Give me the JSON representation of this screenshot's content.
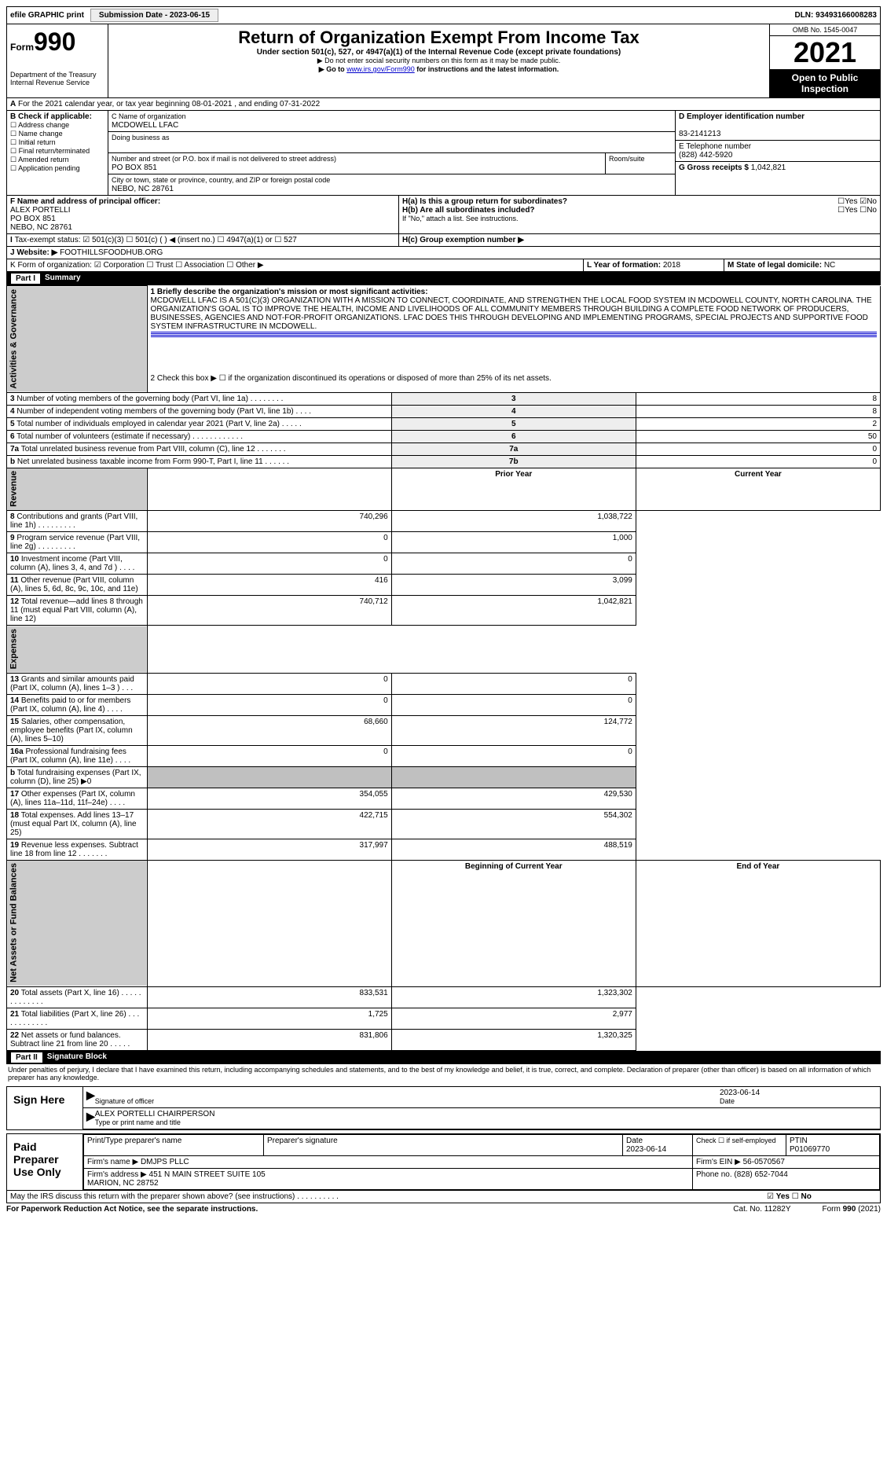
{
  "top": {
    "efile": "efile GRAPHIC print",
    "sub_date_label": "Submission Date - 2023-06-15",
    "dln": "DLN: 93493166008283"
  },
  "header": {
    "form_prefix": "Form",
    "form_no": "990",
    "dept": "Department of the Treasury",
    "irs": "Internal Revenue Service",
    "title": "Return of Organization Exempt From Income Tax",
    "subtitle": "Under section 501(c), 527, or 4947(a)(1) of the Internal Revenue Code (except private foundations)",
    "note1": "▶ Do not enter social security numbers on this form as it may be made public.",
    "note2_pre": "▶ Go to ",
    "note2_link": "www.irs.gov/Form990",
    "note2_post": " for instructions and the latest information.",
    "omb": "OMB No. 1545-0047",
    "year": "2021",
    "open": "Open to Public Inspection"
  },
  "periodA": "For the 2021 calendar year, or tax year beginning 08-01-2021   , and ending 07-31-2022",
  "boxB": {
    "label": "B Check if applicable:",
    "items": [
      "Address change",
      "Name change",
      "Initial return",
      "Final return/terminated",
      "Amended return",
      "Application pending"
    ]
  },
  "boxC": {
    "name_label": "C Name of organization",
    "name": "MCDOWELL LFAC",
    "dba_label": "Doing business as",
    "addr_label": "Number and street (or P.O. box if mail is not delivered to street address)",
    "room_label": "Room/suite",
    "addr": "PO BOX 851",
    "city_label": "City or town, state or province, country, and ZIP or foreign postal code",
    "city": "NEBO, NC  28761"
  },
  "boxD": {
    "label": "D Employer identification number",
    "val": "83-2141213"
  },
  "boxE": {
    "label": "E Telephone number",
    "val": "(828) 442-5920"
  },
  "boxG": {
    "label": "G Gross receipts $",
    "val": "1,042,821"
  },
  "boxF": {
    "label": "F  Name and address of principal officer:",
    "lines": [
      "ALEX PORTELLI",
      "PO BOX 851",
      "NEBO, NC  28761"
    ]
  },
  "boxH": {
    "a": "H(a)  Is this a group return for subordinates?",
    "b": "H(b)  Are all subordinates included?",
    "note": "If \"No,\" attach a list. See instructions.",
    "c": "H(c)  Group exemption number ▶",
    "yes": "Yes",
    "no": "No"
  },
  "taxExempt": {
    "label": "Tax-exempt status:",
    "c3": "501(c)(3)",
    "c_blank": "501(c) (   ) ◀ (insert no.)",
    "a1": "4947(a)(1) or",
    "s527": "527"
  },
  "websiteJ": {
    "label": "Website: ▶",
    "val": "FOOTHILLSFOODHUB.ORG"
  },
  "formK": "K Form of organization:   ☑ Corporation  ☐ Trust  ☐ Association  ☐ Other ▶",
  "yearL": {
    "label": "L Year of formation:",
    "val": "2018"
  },
  "stateM": {
    "label": "M State of legal domicile:",
    "val": "NC"
  },
  "part1": {
    "bar": "Part I",
    "title": "Summary"
  },
  "mission_label": "1   Briefly describe the organization's mission or most significant activities:",
  "mission": "MCDOWELL LFAC IS A 501(C)(3) ORGANIZATION WITH A MISSION TO CONNECT, COORDINATE, AND STRENGTHEN THE LOCAL FOOD SYSTEM IN MCDOWELL COUNTY, NORTH CAROLINA. THE ORGANIZATION'S GOAL IS TO IMPROVE THE HEALTH, INCOME AND LIVELIHOODS OF ALL COMMUNITY MEMBERS THROUGH BUILDING A COMPLETE FOOD NETWORK OF PRODUCERS, BUSINESSES, AGENCIES AND NOT-FOR-PROFIT ORGANIZATIONS. LFAC DOES THIS THROUGH DEVELOPING AND IMPLEMENTING PROGRAMS, SPECIAL PROJECTS AND SUPPORTIVE FOOD SYSTEM INFRASTRUCTURE IN MCDOWELL.",
  "line2": "2   Check this box ▶ ☐ if the organization discontinued its operations or disposed of more than 25% of its net assets.",
  "gov_rows": [
    {
      "n": "3",
      "t": "Number of voting members of the governing body (Part VI, line 1a)  .   .   .   .   .   .   .   .",
      "c": "3",
      "v": "8"
    },
    {
      "n": "4",
      "t": "Number of independent voting members of the governing body (Part VI, line 1b)  .   .   .   .",
      "c": "4",
      "v": "8"
    },
    {
      "n": "5",
      "t": "Total number of individuals employed in calendar year 2021 (Part V, line 2a)  .   .   .   .   .",
      "c": "5",
      "v": "2"
    },
    {
      "n": "6",
      "t": "Total number of volunteers (estimate if necessary)  .   .   .   .   .   .   .   .   .   .   .   .",
      "c": "6",
      "v": "50"
    },
    {
      "n": "7a",
      "t": "Total unrelated business revenue from Part VIII, column (C), line 12  .   .   .   .   .   .   .",
      "c": "7a",
      "v": "0"
    },
    {
      "n": "b",
      "t": "Net unrelated business taxable income from Form 990-T, Part I, line 11  .   .   .   .   .   .",
      "c": "7b",
      "v": "0"
    }
  ],
  "col_headers": {
    "prior": "Prior Year",
    "current": "Current Year"
  },
  "rev_rows": [
    {
      "n": "8",
      "t": "Contributions and grants (Part VIII, line 1h)  .   .   .   .   .   .   .   .   .",
      "p": "740,296",
      "c": "1,038,722"
    },
    {
      "n": "9",
      "t": "Program service revenue (Part VIII, line 2g)  .   .   .   .   .   .   .   .   .",
      "p": "0",
      "c": "1,000"
    },
    {
      "n": "10",
      "t": "Investment income (Part VIII, column (A), lines 3, 4, and 7d )  .   .   .   .",
      "p": "0",
      "c": "0"
    },
    {
      "n": "11",
      "t": "Other revenue (Part VIII, column (A), lines 5, 6d, 8c, 9c, 10c, and 11e)",
      "p": "416",
      "c": "3,099"
    },
    {
      "n": "12",
      "t": "Total revenue—add lines 8 through 11 (must equal Part VIII, column (A), line 12)",
      "p": "740,712",
      "c": "1,042,821"
    }
  ],
  "exp_rows": [
    {
      "n": "13",
      "t": "Grants and similar amounts paid (Part IX, column (A), lines 1–3 )  .   .   .",
      "p": "0",
      "c": "0"
    },
    {
      "n": "14",
      "t": "Benefits paid to or for members (Part IX, column (A), line 4)  .   .   .   .",
      "p": "0",
      "c": "0"
    },
    {
      "n": "15",
      "t": "Salaries, other compensation, employee benefits (Part IX, column (A), lines 5–10)",
      "p": "68,660",
      "c": "124,772"
    },
    {
      "n": "16a",
      "t": "Professional fundraising fees (Part IX, column (A), line 11e)  .   .   .   .",
      "p": "0",
      "c": "0"
    },
    {
      "n": "b",
      "t": "Total fundraising expenses (Part IX, column (D), line 25) ▶0",
      "p": "",
      "c": ""
    },
    {
      "n": "17",
      "t": "Other expenses (Part IX, column (A), lines 11a–11d, 11f–24e)  .   .   .   .",
      "p": "354,055",
      "c": "429,530"
    },
    {
      "n": "18",
      "t": "Total expenses. Add lines 13–17 (must equal Part IX, column (A), line 25)",
      "p": "422,715",
      "c": "554,302"
    },
    {
      "n": "19",
      "t": "Revenue less expenses. Subtract line 18 from line 12  .   .   .   .   .   .   .",
      "p": "317,997",
      "c": "488,519"
    }
  ],
  "net_headers": {
    "b": "Beginning of Current Year",
    "e": "End of Year"
  },
  "net_rows": [
    {
      "n": "20",
      "t": "Total assets (Part X, line 16)  .   .   .   .   .   .   .   .   .   .   .   .   .",
      "p": "833,531",
      "c": "1,323,302"
    },
    {
      "n": "21",
      "t": "Total liabilities (Part X, line 26)  .   .   .   .   .   .   .   .   .   .   .   .",
      "p": "1,725",
      "c": "2,977"
    },
    {
      "n": "22",
      "t": "Net assets or fund balances. Subtract line 21 from line 20  .   .   .   .   .",
      "p": "831,806",
      "c": "1,320,325"
    }
  ],
  "side_labels": {
    "gov": "Activities & Governance",
    "rev": "Revenue",
    "exp": "Expenses",
    "net": "Net Assets or Fund Balances"
  },
  "part2": {
    "bar": "Part II",
    "title": "Signature Block"
  },
  "perjury": "Under penalties of perjury, I declare that I have examined this return, including accompanying schedules and statements, and to the best of my knowledge and belief, it is true, correct, and complete. Declaration of preparer (other than officer) is based on all information of which preparer has any knowledge.",
  "sign": {
    "here": "Sign Here",
    "sig_label": "Signature of officer",
    "date_label": "Date",
    "date": "2023-06-14",
    "name": "ALEX PORTELLI CHAIRPERSON",
    "name_label": "Type or print name and title"
  },
  "paid": {
    "label": "Paid Preparer Use Only",
    "h1": "Print/Type preparer's name",
    "h2": "Preparer's signature",
    "h3": "Date",
    "h4_pre": "Check ☐ if self-employed",
    "h5": "PTIN",
    "date": "2023-06-14",
    "ptin": "P01069770",
    "firm_name_l": "Firm's name   ▶",
    "firm_name": "DMJPS PLLC",
    "firm_ein_l": "Firm's EIN ▶",
    "firm_ein": "56-0570567",
    "firm_addr_l": "Firm's address ▶",
    "firm_addr1": "451 N MAIN STREET SUITE 105",
    "firm_addr2": "MARION, NC  28752",
    "phone_l": "Phone no.",
    "phone": "(828) 652-7044"
  },
  "footer": {
    "discuss": "May the IRS discuss this return with the preparer shown above? (see instructions)   .   .   .   .   .   .   .   .   .   .",
    "yes": "Yes",
    "no": "No",
    "pra": "For Paperwork Reduction Act Notice, see the separate instructions.",
    "cat": "Cat. No. 11282Y",
    "form": "Form 990 (2021)"
  }
}
